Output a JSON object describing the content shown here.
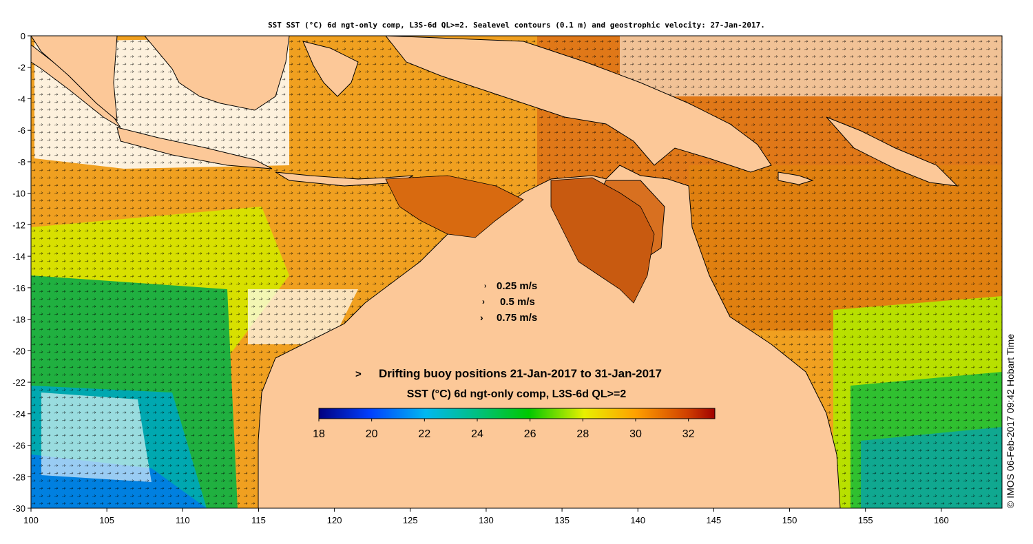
{
  "title": "SST SST (°C) 6d ngt-only comp, L3S-6d QL>=2. Sealevel contours (0.1 m) and geostrophic velocity: 27-Jan-2017.",
  "credit": "© IMOS 06-Feb-2017 09:42 Hobart Time",
  "axes": {
    "lon_ticks": [
      "100",
      "105",
      "110",
      "115",
      "120",
      "125",
      "130",
      "135",
      "140",
      "145",
      "150",
      "155",
      "160"
    ],
    "lat_ticks": [
      "0",
      "-2",
      "-4",
      "-6",
      "-8",
      "-10",
      "-12",
      "-14",
      "-16",
      "-18",
      "-20",
      "-22",
      "-24",
      "-26",
      "-28",
      "-30"
    ],
    "lon_range": [
      100,
      164
    ],
    "lat_range": [
      -30,
      0
    ]
  },
  "velocity_legend": {
    "items": [
      {
        "label": "0.25 m/s",
        "speed": 0.25
      },
      {
        "label": "0.5 m/s",
        "speed": 0.5
      },
      {
        "label": "0.75 m/s",
        "speed": 0.75
      }
    ]
  },
  "buoy_legend": {
    "symbol": ">",
    "label": "Drifting buoy positions 21-Jan-2017 to 31-Jan-2017",
    "color": "#ff00ff"
  },
  "colorbar": {
    "title": "SST (°C) 6d ngt-only comp, L3S-6d QL>=2",
    "min": 18,
    "max": 33,
    "ticks": [
      "18",
      "20",
      "22",
      "24",
      "26",
      "28",
      "30",
      "32"
    ],
    "colors": [
      "#000080",
      "#0000c8",
      "#0050ff",
      "#00a0ff",
      "#00d0e0",
      "#00c080",
      "#00b030",
      "#00c800",
      "#80e000",
      "#e0f000",
      "#ffd000",
      "#ffa000",
      "#f07000",
      "#d04000",
      "#a00000"
    ]
  },
  "colors": {
    "land": "#fcc898",
    "coast": "#000000"
  }
}
